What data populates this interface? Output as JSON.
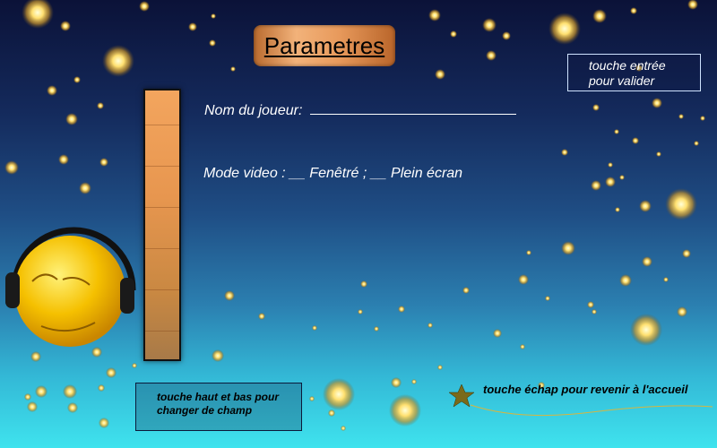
{
  "title": "Parametres",
  "enter_hint": {
    "line1": "touche entrée",
    "line2": "pour valider"
  },
  "fields": {
    "player_name_label": "Nom du joueur:",
    "video_mode_text": "Mode video : __  Fenêtré ; __  Plein écran"
  },
  "updown_hint": {
    "line1": "touche haut et bas pour",
    "line2": "changer de champ"
  },
  "escape_hint": "touche échap pour revenir à l'accueil",
  "colors": {
    "title_plate": "#e89a5c",
    "level_bar": "#e7964f",
    "star": "#7a6a1a",
    "smiley": "#f5c000"
  },
  "icons": {
    "decoration_star": "star-icon",
    "mascot": "smiley-headphones-icon"
  }
}
